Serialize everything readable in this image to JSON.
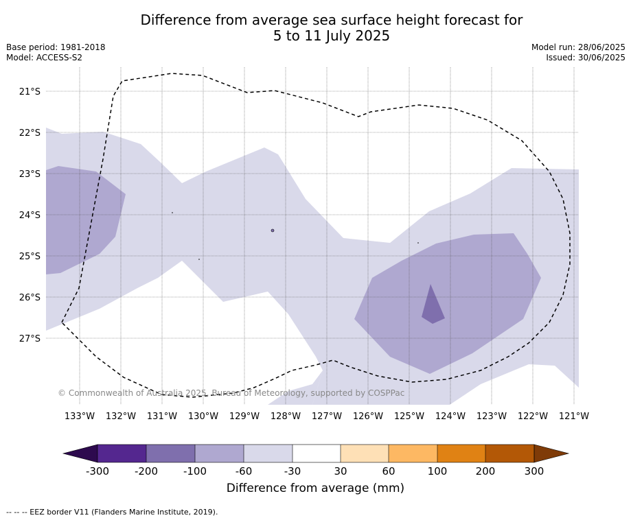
{
  "title_line1": "Difference from average sea surface height forecast for",
  "title_line2": "5 to 11 July 2025",
  "base_period": "Base period: 1981-2018",
  "model": "Model: ACCESS-S2",
  "model_run": "Model run: 28/06/2025",
  "issued": "Issued: 30/06/2025",
  "copyright": "© Commonwealth of Australia 2025, Bureau of Meteorology, supported by COSPPac",
  "footnote": "-- -- -- EEZ border V11 (Flanders Marine Institute, 2019).",
  "lat_labels": [
    "21°S",
    "22°S",
    "23°S",
    "24°S",
    "25°S",
    "26°S",
    "27°S"
  ],
  "lon_labels": [
    "133°W",
    "132°W",
    "131°W",
    "130°W",
    "129°W",
    "128°W",
    "127°W",
    "126°W",
    "125°W",
    "124°W",
    "123°W",
    "122°W",
    "121°W"
  ],
  "colorbar": {
    "title": "Difference from average (mm)",
    "ticks": [
      "-300",
      "-200",
      "-100",
      "-60",
      "-30",
      "30",
      "60",
      "100",
      "200",
      "300"
    ],
    "colors": [
      "#2d0a4e",
      "#54278f",
      "#7f6fad",
      "#afa8d0",
      "#d9d9ea",
      "#ffffff",
      "#fee0b6",
      "#fdb863",
      "#e08214",
      "#b35806",
      "#7f3b08"
    ]
  },
  "fill_colors": {
    "light": "#d9d9ea",
    "medium": "#afa8d0",
    "dark": "#7f6fad"
  }
}
